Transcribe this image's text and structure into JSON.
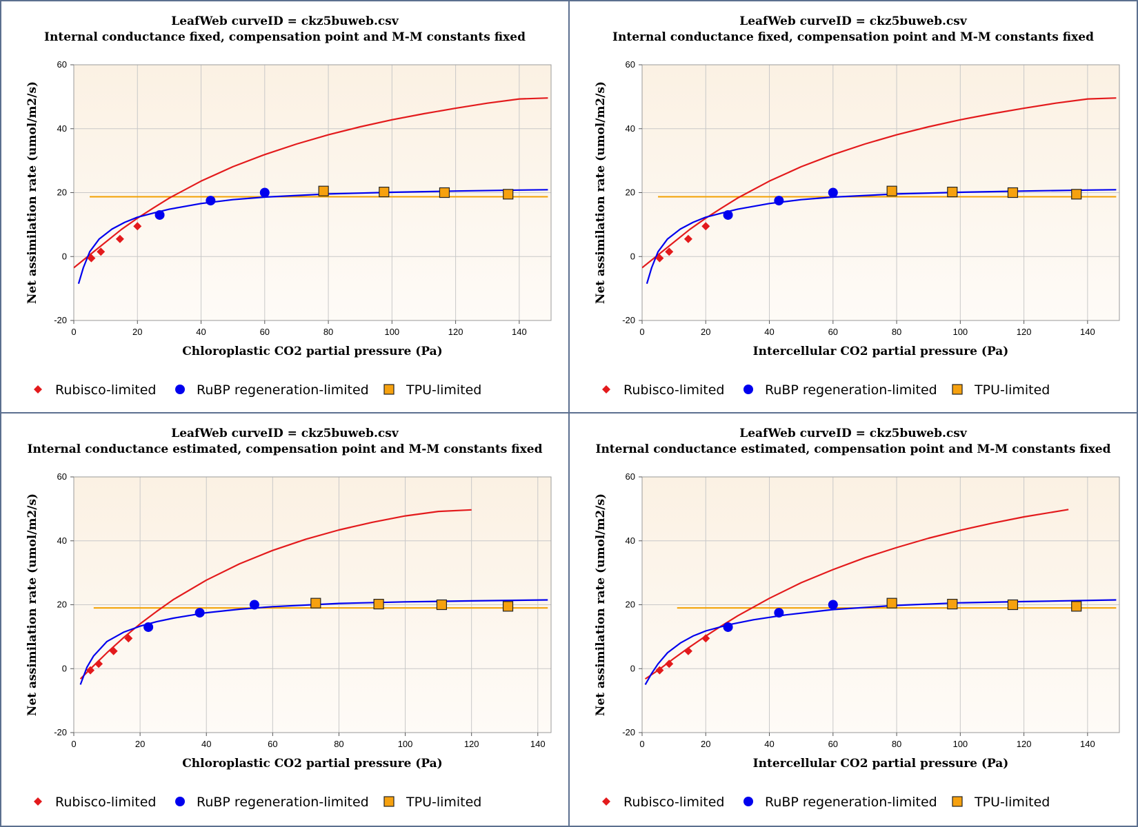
{
  "colors": {
    "rubisco": "#e31a1c",
    "rubp": "#0000ee",
    "tpu_line": "#f2a000",
    "tpu_marker": "#f6a10f",
    "plot_bg_top": "#fbf1e3",
    "plot_bg_bottom": "#fefbf7",
    "panel_border": "#5b6f8f"
  },
  "legend": {
    "rubisco": "Rubisco-limited",
    "rubp": "RuBP regeneration-limited",
    "tpu": "TPU-limited"
  },
  "chart_data": [
    {
      "type": "scatter",
      "title": "LeafWeb curveID = ckz5buweb.csv",
      "subtitle": "Internal conductance fixed, compensation point and M-M constants fixed",
      "xlabel": "Chloroplastic CO2 partial pressure (Pa)",
      "ylabel": "Net assimilation rate (umol/m2/s)",
      "xlim": [
        0,
        150
      ],
      "ylim": [
        -20,
        60
      ],
      "xticks": [
        0,
        20,
        40,
        60,
        80,
        100,
        120,
        140
      ],
      "yticks": [
        -20,
        0,
        20,
        40,
        60
      ],
      "grid": true,
      "legend": "bottom",
      "rubisco_points": [
        [
          5.5,
          -0.5
        ],
        [
          8.5,
          1.5
        ],
        [
          14.5,
          5.5
        ],
        [
          20,
          9.5
        ]
      ],
      "rubp_points": [
        [
          27,
          13
        ],
        [
          43,
          17.5
        ],
        [
          60,
          20
        ]
      ],
      "tpu_points": [
        [
          78.5,
          20.5
        ],
        [
          97.5,
          20.2
        ],
        [
          116.5,
          20
        ],
        [
          136.5,
          19.5
        ]
      ],
      "rubisco_curve": {
        "x": [
          0,
          5,
          10,
          15,
          20,
          25,
          30,
          40,
          50,
          60,
          70,
          80,
          90,
          100,
          110,
          120,
          130,
          140,
          149
        ],
        "y": [
          -3.5,
          0.5,
          4.5,
          8.5,
          12,
          15.2,
          18.3,
          23.6,
          28.1,
          31.9,
          35.2,
          38.1,
          40.6,
          42.8,
          44.7,
          46.4,
          48,
          49.3,
          49.6
        ]
      },
      "rubp_curve": {
        "x": [
          1.5,
          3,
          5,
          8,
          12,
          16,
          20,
          25,
          30,
          40,
          50,
          60,
          80,
          100,
          120,
          140,
          149
        ],
        "y": [
          -8.5,
          -3.5,
          1.5,
          5.5,
          8.6,
          10.7,
          12.3,
          13.6,
          14.8,
          16.6,
          17.8,
          18.6,
          19.6,
          20.1,
          20.5,
          20.8,
          20.9
        ]
      },
      "tpu_level": 18.7,
      "tpu_x": [
        5,
        149
      ]
    },
    {
      "type": "scatter",
      "title": "LeafWeb curveID = ckz5buweb.csv",
      "subtitle": "Internal conductance fixed, compensation point and M-M constants fixed",
      "xlabel": "Intercellular CO2 partial pressure (Pa)",
      "ylabel": "Net assimilation rate (umol/m2/s)",
      "xlim": [
        0,
        150
      ],
      "ylim": [
        -20,
        60
      ],
      "xticks": [
        0,
        20,
        40,
        60,
        80,
        100,
        120,
        140
      ],
      "yticks": [
        -20,
        0,
        20,
        40,
        60
      ],
      "grid": true,
      "legend": "bottom",
      "rubisco_points": [
        [
          5.5,
          -0.5
        ],
        [
          8.5,
          1.5
        ],
        [
          14.5,
          5.5
        ],
        [
          20,
          9.5
        ]
      ],
      "rubp_points": [
        [
          27,
          13
        ],
        [
          43,
          17.5
        ],
        [
          60,
          20
        ]
      ],
      "tpu_points": [
        [
          78.5,
          20.5
        ],
        [
          97.5,
          20.2
        ],
        [
          116.5,
          20
        ],
        [
          136.5,
          19.5
        ]
      ],
      "rubisco_curve": {
        "x": [
          0,
          5,
          10,
          15,
          20,
          25,
          30,
          40,
          50,
          60,
          70,
          80,
          90,
          100,
          110,
          120,
          130,
          140,
          149
        ],
        "y": [
          -3.5,
          0.5,
          4.5,
          8.5,
          12,
          15.2,
          18.3,
          23.6,
          28.1,
          31.9,
          35.2,
          38.1,
          40.6,
          42.8,
          44.7,
          46.4,
          48,
          49.3,
          49.6
        ]
      },
      "rubp_curve": {
        "x": [
          1.5,
          3,
          5,
          8,
          12,
          16,
          20,
          25,
          30,
          40,
          50,
          60,
          80,
          100,
          120,
          140,
          149
        ],
        "y": [
          -8.5,
          -3.5,
          1.5,
          5.5,
          8.6,
          10.7,
          12.3,
          13.6,
          14.8,
          16.6,
          17.8,
          18.6,
          19.6,
          20.1,
          20.5,
          20.8,
          20.9
        ]
      },
      "tpu_level": 18.7,
      "tpu_x": [
        5,
        149
      ]
    },
    {
      "type": "scatter",
      "title": "LeafWeb curveID = ckz5buweb.csv",
      "subtitle": "Internal conductance estimated, compensation point and M-M constants fixed",
      "xlabel": "Chloroplastic CO2 partial pressure (Pa)",
      "ylabel": "Net assimilation rate (umol/m2/s)",
      "xlim": [
        0,
        144
      ],
      "ylim": [
        -20,
        60
      ],
      "xticks": [
        0,
        20,
        40,
        60,
        80,
        100,
        120,
        140
      ],
      "yticks": [
        -20,
        0,
        20,
        40,
        60
      ],
      "grid": true,
      "legend": "bottom",
      "rubisco_points": [
        [
          5,
          -0.5
        ],
        [
          7.5,
          1.5
        ],
        [
          12,
          5.5
        ],
        [
          16.5,
          9.5
        ]
      ],
      "rubp_points": [
        [
          22.5,
          13
        ],
        [
          38,
          17.5
        ],
        [
          54.5,
          20
        ]
      ],
      "tpu_points": [
        [
          73,
          20.5
        ],
        [
          92,
          20.2
        ],
        [
          111,
          20
        ],
        [
          131,
          19.5
        ]
      ],
      "rubisco_curve": {
        "x": [
          2,
          5,
          10,
          15,
          20,
          25,
          30,
          40,
          50,
          60,
          70,
          80,
          90,
          100,
          110,
          120
        ],
        "y": [
          -3.2,
          -0.1,
          5,
          9.7,
          14,
          17.9,
          21.6,
          27.7,
          32.8,
          37,
          40.5,
          43.4,
          45.8,
          47.8,
          49.2,
          49.7
        ]
      },
      "rubp_curve": {
        "x": [
          2,
          4,
          6,
          10,
          15,
          20,
          25,
          30,
          40,
          50,
          60,
          80,
          100,
          120,
          143
        ],
        "y": [
          -5,
          0.5,
          4,
          8.5,
          11.4,
          13.3,
          14.7,
          15.8,
          17.5,
          18.6,
          19.4,
          20.4,
          20.9,
          21.2,
          21.5
        ]
      },
      "tpu_level": 19,
      "tpu_x": [
        6,
        143
      ]
    },
    {
      "type": "scatter",
      "title": "LeafWeb curveID = ckz5buweb.csv",
      "subtitle": "Internal conductance estimated, compensation point and M-M constants fixed",
      "xlabel": "Intercellular CO2 partial pressure (Pa)",
      "ylabel": "Net assimilation rate (umol/m2/s)",
      "xlim": [
        0,
        150
      ],
      "ylim": [
        -20,
        60
      ],
      "xticks": [
        0,
        20,
        40,
        60,
        80,
        100,
        120,
        140
      ],
      "yticks": [
        -20,
        0,
        20,
        40,
        60
      ],
      "grid": true,
      "legend": "bottom",
      "rubisco_points": [
        [
          5.5,
          -0.5
        ],
        [
          8.5,
          1.5
        ],
        [
          14.5,
          5.5
        ],
        [
          20,
          9.5
        ]
      ],
      "rubp_points": [
        [
          27,
          13
        ],
        [
          43,
          17.5
        ],
        [
          60,
          20
        ]
      ],
      "tpu_points": [
        [
          78.5,
          20.5
        ],
        [
          97.5,
          20.2
        ],
        [
          116.5,
          20
        ],
        [
          136.5,
          19.5
        ]
      ],
      "rubisco_curve": {
        "x": [
          1,
          5,
          10,
          15,
          20,
          25,
          30,
          40,
          50,
          60,
          70,
          80,
          90,
          100,
          110,
          120,
          134
        ],
        "y": [
          -3.2,
          -0.5,
          3.2,
          6.8,
          10.2,
          13.4,
          16.5,
          22,
          26.9,
          31,
          34.7,
          37.9,
          40.8,
          43.3,
          45.5,
          47.5,
          49.8
        ]
      },
      "rubp_curve": {
        "x": [
          1,
          3,
          5,
          8,
          12,
          16,
          20,
          27,
          35,
          45,
          60,
          80,
          100,
          120,
          149
        ],
        "y": [
          -5,
          -1.5,
          1.5,
          5,
          8,
          10.2,
          11.8,
          13.7,
          15.3,
          16.8,
          18.5,
          19.8,
          20.6,
          21,
          21.5
        ]
      },
      "tpu_level": 19,
      "tpu_x": [
        11,
        149
      ]
    }
  ]
}
